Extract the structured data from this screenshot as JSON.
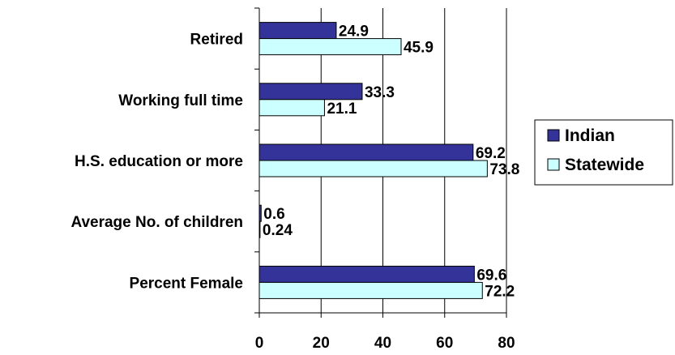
{
  "chart_data": {
    "type": "bar",
    "orientation": "horizontal",
    "categories": [
      "Retired",
      "Working full time",
      "H.S. education  or more",
      "Average No. of children",
      "Percent Female"
    ],
    "series": [
      {
        "name": "Indian",
        "values": [
          24.9,
          33.3,
          69.2,
          0.6,
          69.6
        ],
        "labels": [
          "24.9",
          "33.3",
          "69.2",
          "0.6",
          "69.6"
        ],
        "color": "#333399"
      },
      {
        "name": "Statewide",
        "values": [
          45.9,
          21.1,
          73.8,
          0.24,
          72.2
        ],
        "labels": [
          "45.9",
          "21.1",
          "73.8",
          "0.24",
          "72.2"
        ],
        "color": "#ccffff"
      }
    ],
    "xlim": [
      0,
      80
    ],
    "xticks": [
      0,
      20,
      40,
      60,
      80
    ],
    "grid": true,
    "legend": "right"
  }
}
